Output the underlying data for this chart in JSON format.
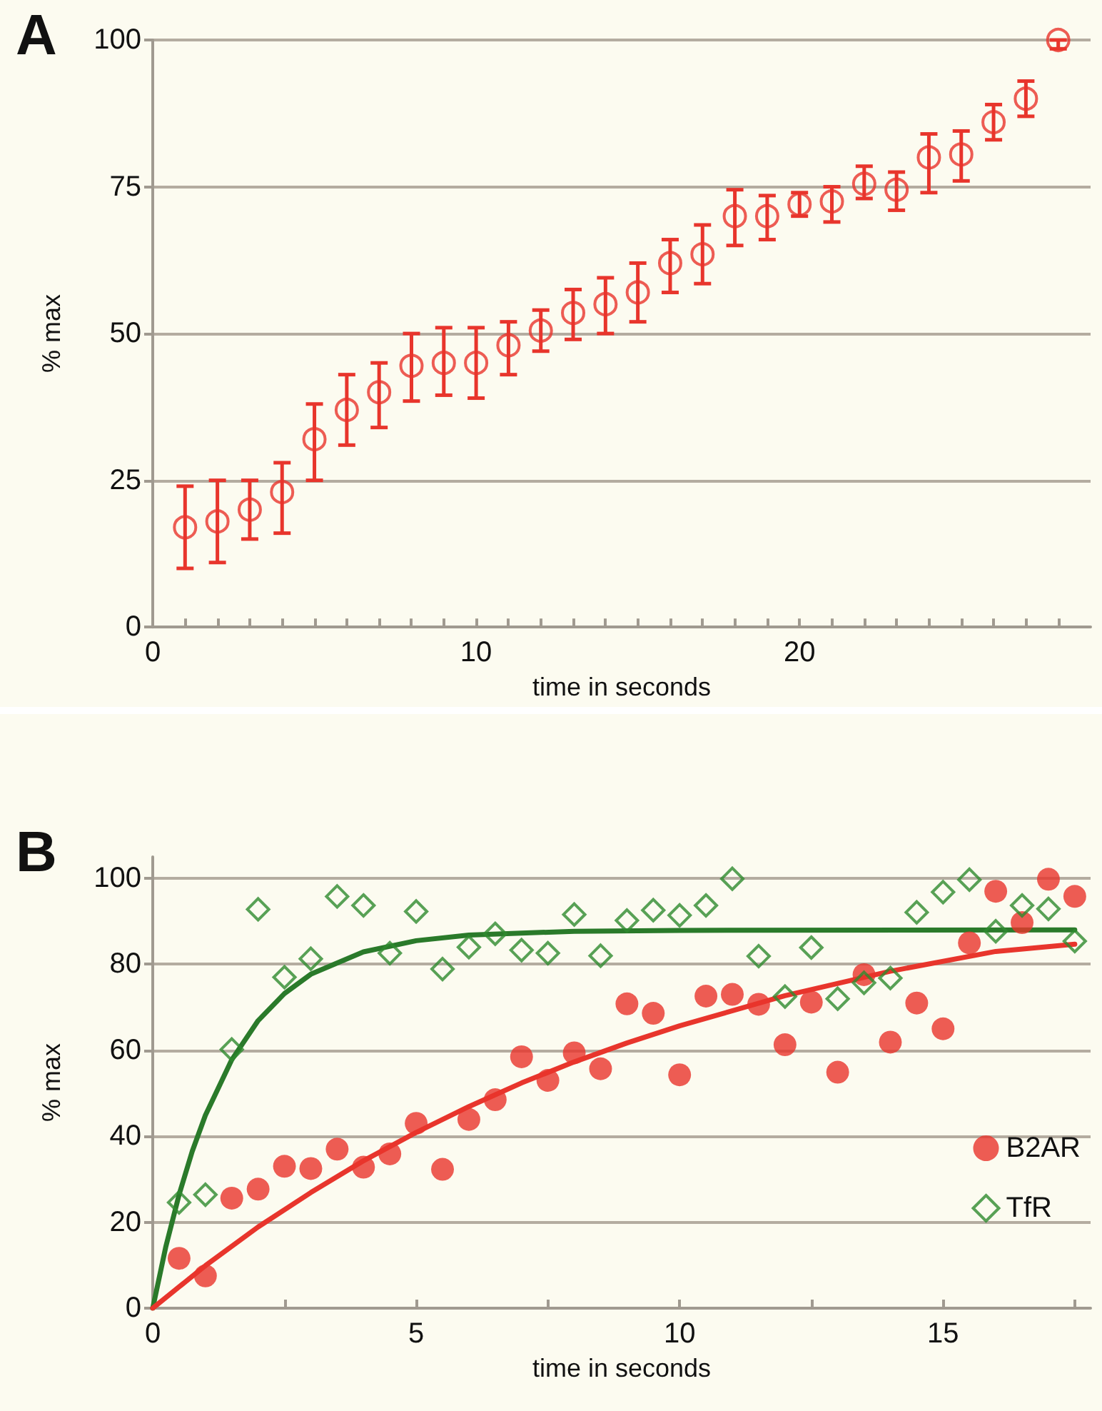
{
  "chart_data": [
    {
      "type": "scatter",
      "title": "A",
      "xlabel": "time in seconds",
      "ylabel": "% max",
      "xlim": [
        0,
        29
      ],
      "ylim": [
        0,
        100
      ],
      "xticks": [
        0,
        {
          "value": 1,
          "label": null
        },
        {
          "value": 2,
          "label": null
        },
        {
          "value": 3,
          "label": null
        },
        {
          "value": 4,
          "label": null
        },
        {
          "value": 5,
          "label": null
        },
        {
          "value": 6,
          "label": null
        },
        {
          "value": 7,
          "label": null
        },
        {
          "value": 8,
          "label": null
        },
        {
          "value": 9,
          "label": null
        },
        10,
        {
          "value": 11,
          "label": null
        },
        {
          "value": 12,
          "label": null
        },
        {
          "value": 13,
          "label": null
        },
        {
          "value": 14,
          "label": null
        },
        {
          "value": 15,
          "label": null
        },
        {
          "value": 16,
          "label": null
        },
        {
          "value": 17,
          "label": null
        },
        {
          "value": 18,
          "label": null
        },
        {
          "value": 19,
          "label": null
        },
        20,
        {
          "value": 21,
          "label": null
        },
        {
          "value": 22,
          "label": null
        },
        {
          "value": 23,
          "label": null
        },
        {
          "value": 24,
          "label": null
        },
        {
          "value": 25,
          "label": null
        },
        {
          "value": 26,
          "label": null
        },
        {
          "value": 27,
          "label": null
        },
        {
          "value": 28,
          "label": null
        }
      ],
      "yticks": [
        0,
        25,
        50,
        75,
        100
      ],
      "grid": "y",
      "legend": false,
      "marker": "circle",
      "series": [
        {
          "color": "#e8352c",
          "x": [
            1,
            2,
            3,
            4,
            5,
            6,
            7,
            8,
            9,
            10,
            11,
            12,
            13,
            14,
            15,
            16,
            17,
            18,
            19,
            20,
            21,
            22,
            23,
            24,
            25,
            26,
            27,
            28
          ],
          "values": [
            17,
            18,
            20,
            23,
            32,
            37,
            40,
            44.5,
            45,
            45,
            48,
            50.5,
            53.5,
            55,
            57,
            62,
            63.5,
            70,
            70,
            72,
            72.5,
            75.5,
            74.5,
            80,
            80.5,
            86,
            90,
            100
          ],
          "errors": [
            [
              10,
              24
            ],
            [
              11,
              25
            ],
            [
              15,
              25
            ],
            [
              16,
              28
            ],
            [
              25,
              38
            ],
            [
              31,
              43
            ],
            [
              34,
              45
            ],
            [
              38.5,
              50
            ],
            [
              39.5,
              51
            ],
            [
              39,
              51
            ],
            [
              43,
              52
            ],
            [
              47,
              54
            ],
            [
              49,
              57.5
            ],
            [
              50,
              59.5
            ],
            [
              52,
              62
            ],
            [
              57,
              66
            ],
            [
              58.5,
              68.5
            ],
            [
              65,
              74.5
            ],
            [
              66,
              73.5
            ],
            [
              70,
              74
            ],
            [
              69,
              75
            ],
            [
              73,
              78.5
            ],
            [
              71,
              77.5
            ],
            [
              74,
              84
            ],
            [
              76,
              84.5
            ],
            [
              83,
              89
            ],
            [
              87,
              93
            ],
            [
              98.5,
              100
            ]
          ]
        }
      ]
    },
    {
      "type": "scatter",
      "title": "B",
      "xlabel": "time in seconds",
      "ylabel": "% max",
      "xlim": [
        0,
        17.8
      ],
      "ylim": [
        0,
        105
      ],
      "xticks": [
        0,
        {
          "value": 2.5,
          "label": null
        },
        5,
        {
          "value": 7.5,
          "label": null
        },
        10,
        {
          "value": 12.5,
          "label": null
        },
        15,
        {
          "value": 17.5,
          "label": null
        }
      ],
      "yticks": [
        0,
        20,
        40,
        60,
        80,
        100
      ],
      "grid": "y",
      "legend": "bottom right",
      "series": [
        {
          "name": "B2AR",
          "color": "#e8352c",
          "marker": "circle",
          "x": [
            0.5,
            1,
            1.5,
            2,
            2.5,
            3,
            3.5,
            4,
            4.5,
            5,
            5.5,
            6,
            6.5,
            7,
            7.5,
            8,
            8.5,
            9,
            9.5,
            10,
            10.5,
            11,
            11.5,
            12,
            12.5,
            13,
            13.5,
            14,
            14.5,
            15,
            15.5,
            16,
            16.5,
            17,
            17.5
          ],
          "values": [
            11.6,
            7.5,
            25.6,
            27.7,
            33,
            32.5,
            37,
            32.8,
            35.9,
            43,
            32.3,
            43.9,
            48.5,
            58.5,
            53,
            59.4,
            55.7,
            70.8,
            68.6,
            54.3,
            72.6,
            73,
            70.7,
            61.3,
            71.2,
            54.9,
            77.6,
            61.9,
            71,
            65,
            85,
            97,
            89.7,
            99.8,
            95.8
          ]
        },
        {
          "name": "TfR",
          "color": "#2e8b2e",
          "marker": "diamond",
          "x": [
            0.5,
            1,
            1.5,
            2,
            2.5,
            3,
            3.5,
            4,
            4.5,
            5,
            5.5,
            6,
            6.5,
            7,
            7.5,
            8,
            8.5,
            9,
            9.5,
            10,
            10.5,
            11,
            11.5,
            12,
            12.5,
            13,
            13.5,
            14,
            14.5,
            15,
            15.5,
            16,
            16.5,
            17,
            17.5
          ],
          "values": [
            24.6,
            26.4,
            60.2,
            92.8,
            77,
            81.3,
            95.8,
            93.7,
            82.6,
            92.3,
            78.9,
            84,
            87.1,
            83.3,
            82.6,
            91.6,
            82,
            90.2,
            92.6,
            91.4,
            93.7,
            99.9,
            81.9,
            72.5,
            83.9,
            72,
            75.7,
            76.8,
            92.1,
            96.8,
            99.7,
            87.7,
            93.7,
            92.9,
            85.4
          ]
        },
        {
          "type": "line",
          "color": "#2a7a2a",
          "marker": "none",
          "x": [
            0,
            0.25,
            0.5,
            0.75,
            1,
            1.5,
            2,
            2.5,
            3,
            4,
            5,
            6,
            8,
            10,
            17.5
          ],
          "values": [
            0,
            14.4,
            26.4,
            36.5,
            44.9,
            57.8,
            66.9,
            73.2,
            77.7,
            82.9,
            85.5,
            86.8,
            87.7,
            87.9,
            88
          ]
        },
        {
          "type": "line",
          "color": "#e8352c",
          "marker": "none",
          "x": [
            0,
            1,
            2,
            3,
            4,
            5,
            6,
            7,
            8,
            9,
            10,
            12,
            14,
            16,
            17.5
          ],
          "values": [
            0,
            9.9,
            18.9,
            26.9,
            34.3,
            40.9,
            46.9,
            52.4,
            57.3,
            61.7,
            65.7,
            72.7,
            78.4,
            83,
            84.7
          ]
        }
      ]
    }
  ]
}
